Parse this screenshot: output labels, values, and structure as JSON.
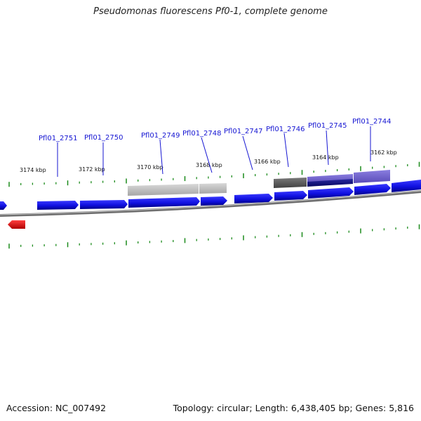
{
  "title": "Pseudomonas fluorescens Pf0-1, complete genome",
  "footer": {
    "accession": "Accession: NC_007492",
    "summary": "Topology: circular; Length: 6,438,405 bp; Genes: 5,816"
  },
  "kbp_labels": [
    "3174 kbp",
    "3172 kbp",
    "3170 kbp",
    "3168 kbp",
    "3166 kbp",
    "3164 kbp",
    "3162 kbp"
  ],
  "gene_labels": [
    "Pfl01_2751",
    "Pfl01_2750",
    "Pfl01_2749",
    "Pfl01_2748",
    "Pfl01_2747",
    "Pfl01_2746",
    "Pfl01_2745",
    "Pfl01_2744"
  ],
  "colors": {
    "gene_forward": "#1a10e8",
    "gene_reverse": "#ee1111",
    "gene_label": "#1414d2",
    "tick": "#1a8a1a",
    "backbone": "#7a7a7a"
  }
}
